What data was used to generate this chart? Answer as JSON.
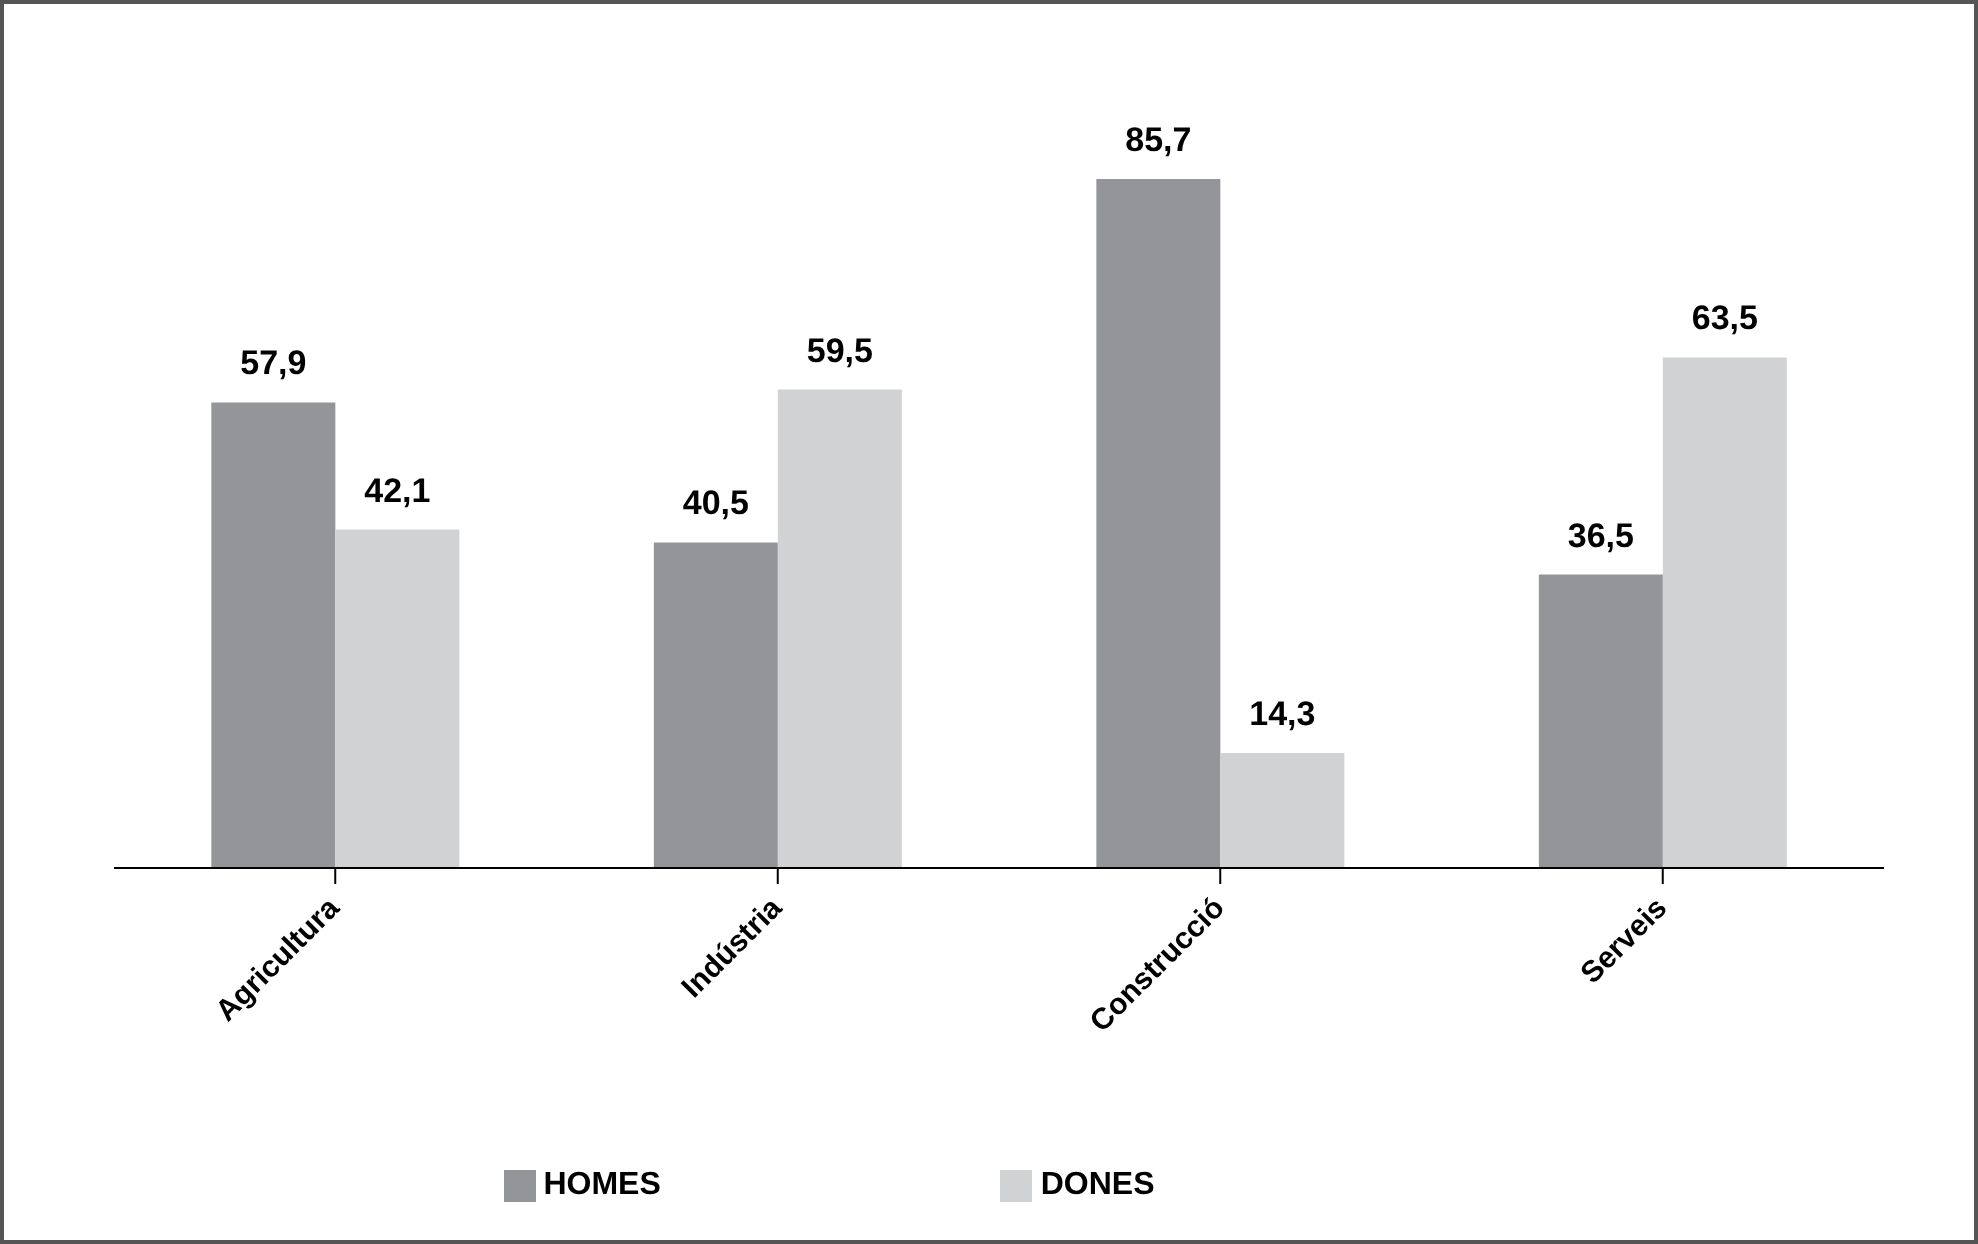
{
  "chart_data": {
    "type": "bar",
    "categories": [
      "Agricultura",
      "Indústria",
      "Construcció",
      "Serveis"
    ],
    "series": [
      {
        "name": "HOMES",
        "color": "#939598",
        "values": [
          57.9,
          40.5,
          85.7,
          36.5
        ],
        "value_labels": [
          "57,9",
          "40,5",
          "85,7",
          "36,5"
        ]
      },
      {
        "name": "DONES",
        "color": "#d1d2d4",
        "values": [
          42.1,
          59.5,
          14.3,
          63.5
        ],
        "value_labels": [
          "42,1",
          "59,5",
          "14,3",
          "63,5"
        ]
      }
    ],
    "legend": "bottom",
    "grid": false
  }
}
